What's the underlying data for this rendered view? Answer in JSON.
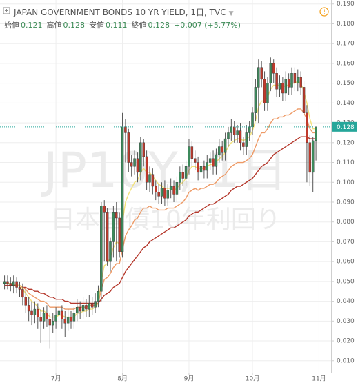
{
  "header": {
    "title": "JAPAN GOVERNMENT BONDS 10 YR YIELD, 1日, TVC",
    "ohlc": [
      {
        "label": "始値",
        "value": 0.121
      },
      {
        "label": "高値",
        "value": 0.128
      },
      {
        "label": "安値",
        "value": 0.111
      },
      {
        "label": "終値",
        "value": 0.128
      }
    ],
    "change": "+0.007 (+5.77%)"
  },
  "chart_data": {
    "type": "candlestick",
    "watermark": "JP10Y, 1日",
    "watermark_sub": "日本国債10年利回り",
    "open": [
      0.049,
      0.05,
      0.049,
      0.048,
      0.05,
      0.047,
      0.046,
      0.042,
      0.038,
      0.035,
      0.033,
      0.036,
      0.032,
      0.03,
      0.034,
      0.031,
      0.028,
      0.03,
      0.033,
      0.035,
      0.031,
      0.029,
      0.032,
      0.03,
      0.034,
      0.037,
      0.035,
      0.038,
      0.036,
      0.039,
      0.037,
      0.04,
      0.045,
      0.088,
      0.085,
      0.06,
      0.07,
      0.085,
      0.082,
      0.065,
      0.128,
      0.125,
      0.11,
      0.108,
      0.112,
      0.105,
      0.12,
      0.113,
      0.1,
      0.104,
      0.098,
      0.095,
      0.093,
      0.097,
      0.092,
      0.096,
      0.098,
      0.094,
      0.1,
      0.105,
      0.102,
      0.108,
      0.118,
      0.112,
      0.11,
      0.105,
      0.108,
      0.106,
      0.11,
      0.112,
      0.108,
      0.114,
      0.118,
      0.115,
      0.122,
      0.125,
      0.128,
      0.124,
      0.126,
      0.12,
      0.118,
      0.125,
      0.128,
      0.135,
      0.148,
      0.158,
      0.152,
      0.14,
      0.15,
      0.16,
      0.155,
      0.147,
      0.15,
      0.145,
      0.152,
      0.148,
      0.155,
      0.15,
      0.153,
      0.148,
      0.135,
      0.12,
      0.105,
      0.121
    ],
    "high": [
      0.053,
      0.053,
      0.052,
      0.053,
      0.052,
      0.05,
      0.049,
      0.046,
      0.042,
      0.04,
      0.04,
      0.039,
      0.036,
      0.037,
      0.038,
      0.034,
      0.034,
      0.037,
      0.039,
      0.038,
      0.035,
      0.036,
      0.035,
      0.037,
      0.041,
      0.04,
      0.042,
      0.041,
      0.043,
      0.042,
      0.044,
      0.048,
      0.09,
      0.091,
      0.087,
      0.072,
      0.088,
      0.09,
      0.085,
      0.135,
      0.132,
      0.127,
      0.114,
      0.116,
      0.115,
      0.123,
      0.122,
      0.116,
      0.108,
      0.107,
      0.101,
      0.099,
      0.1,
      0.101,
      0.099,
      0.102,
      0.101,
      0.103,
      0.108,
      0.109,
      0.111,
      0.122,
      0.121,
      0.116,
      0.113,
      0.112,
      0.111,
      0.114,
      0.115,
      0.116,
      0.117,
      0.122,
      0.121,
      0.125,
      0.128,
      0.132,
      0.131,
      0.129,
      0.13,
      0.123,
      0.129,
      0.131,
      0.138,
      0.152,
      0.162,
      0.161,
      0.156,
      0.153,
      0.163,
      0.162,
      0.158,
      0.154,
      0.153,
      0.156,
      0.155,
      0.158,
      0.158,
      0.157,
      0.156,
      0.151,
      0.139,
      0.124,
      0.123,
      0.128
    ],
    "low": [
      0.046,
      0.046,
      0.045,
      0.044,
      0.044,
      0.042,
      0.038,
      0.034,
      0.03,
      0.028,
      0.029,
      0.026,
      0.019,
      0.026,
      0.027,
      0.016,
      0.024,
      0.026,
      0.029,
      0.026,
      0.022,
      0.025,
      0.026,
      0.026,
      0.03,
      0.031,
      0.031,
      0.032,
      0.032,
      0.033,
      0.034,
      0.037,
      0.04,
      0.06,
      0.058,
      0.055,
      0.062,
      0.06,
      0.062,
      0.062,
      0.11,
      0.105,
      0.103,
      0.104,
      0.1,
      0.101,
      0.108,
      0.096,
      0.095,
      0.094,
      0.091,
      0.089,
      0.089,
      0.088,
      0.088,
      0.092,
      0.09,
      0.09,
      0.096,
      0.098,
      0.098,
      0.104,
      0.108,
      0.106,
      0.101,
      0.1,
      0.102,
      0.102,
      0.106,
      0.104,
      0.104,
      0.11,
      0.111,
      0.111,
      0.118,
      0.121,
      0.12,
      0.12,
      0.116,
      0.114,
      0.114,
      0.121,
      0.124,
      0.131,
      0.13,
      0.148,
      0.136,
      0.136,
      0.146,
      0.15,
      0.143,
      0.143,
      0.141,
      0.141,
      0.144,
      0.144,
      0.146,
      0.146,
      0.144,
      0.13,
      0.1,
      0.098,
      0.095,
      0.111
    ],
    "close": [
      0.05,
      0.049,
      0.048,
      0.05,
      0.047,
      0.046,
      0.042,
      0.038,
      0.035,
      0.033,
      0.036,
      0.032,
      0.03,
      0.034,
      0.031,
      0.028,
      0.03,
      0.033,
      0.035,
      0.031,
      0.029,
      0.032,
      0.03,
      0.034,
      0.037,
      0.035,
      0.038,
      0.036,
      0.039,
      0.037,
      0.04,
      0.045,
      0.088,
      0.085,
      0.06,
      0.07,
      0.085,
      0.082,
      0.065,
      0.128,
      0.125,
      0.11,
      0.108,
      0.112,
      0.105,
      0.12,
      0.113,
      0.1,
      0.104,
      0.098,
      0.095,
      0.093,
      0.097,
      0.092,
      0.096,
      0.098,
      0.094,
      0.1,
      0.105,
      0.102,
      0.108,
      0.118,
      0.112,
      0.11,
      0.105,
      0.108,
      0.106,
      0.11,
      0.112,
      0.108,
      0.114,
      0.118,
      0.115,
      0.122,
      0.125,
      0.128,
      0.124,
      0.126,
      0.12,
      0.118,
      0.125,
      0.128,
      0.135,
      0.148,
      0.158,
      0.152,
      0.14,
      0.15,
      0.16,
      0.155,
      0.147,
      0.15,
      0.145,
      0.152,
      0.148,
      0.155,
      0.15,
      0.153,
      0.148,
      0.135,
      0.12,
      0.105,
      0.121,
      0.128
    ],
    "up_color": "#3d8a5c",
    "down_color": "#c0392b",
    "wick_color": "#555555",
    "overlays": [
      {
        "type": "line",
        "color": "#b5382c",
        "values": [
          0.048,
          0.048,
          0.048,
          0.048,
          0.048,
          0.048,
          0.047,
          0.047,
          0.046,
          0.046,
          0.045,
          0.045,
          0.044,
          0.044,
          0.043,
          0.042,
          0.042,
          0.041,
          0.041,
          0.041,
          0.04,
          0.04,
          0.039,
          0.039,
          0.039,
          0.039,
          0.039,
          0.039,
          0.039,
          0.039,
          0.039,
          0.039,
          0.041,
          0.043,
          0.044,
          0.045,
          0.047,
          0.048,
          0.049,
          0.052,
          0.055,
          0.057,
          0.059,
          0.061,
          0.063,
          0.065,
          0.067,
          0.068,
          0.07,
          0.071,
          0.072,
          0.073,
          0.074,
          0.075,
          0.076,
          0.077,
          0.077,
          0.078,
          0.079,
          0.08,
          0.081,
          0.083,
          0.084,
          0.085,
          0.085,
          0.086,
          0.087,
          0.088,
          0.089,
          0.089,
          0.09,
          0.091,
          0.092,
          0.093,
          0.094,
          0.096,
          0.097,
          0.098,
          0.098,
          0.099,
          0.1,
          0.101,
          0.102,
          0.104,
          0.106,
          0.108,
          0.109,
          0.11,
          0.112,
          0.114,
          0.115,
          0.116,
          0.117,
          0.118,
          0.119,
          0.12,
          0.121,
          0.122,
          0.123,
          0.123,
          0.123,
          0.122,
          0.122,
          0.122
        ]
      },
      {
        "type": "line",
        "color": "#ee9a66",
        "values": [
          0.049,
          0.049,
          0.049,
          0.049,
          0.048,
          0.048,
          0.047,
          0.046,
          0.044,
          0.043,
          0.042,
          0.041,
          0.04,
          0.04,
          0.039,
          0.037,
          0.037,
          0.037,
          0.037,
          0.037,
          0.036,
          0.036,
          0.036,
          0.036,
          0.037,
          0.037,
          0.037,
          0.037,
          0.038,
          0.038,
          0.038,
          0.039,
          0.046,
          0.051,
          0.052,
          0.054,
          0.057,
          0.059,
          0.059,
          0.066,
          0.073,
          0.076,
          0.078,
          0.081,
          0.082,
          0.085,
          0.087,
          0.087,
          0.088,
          0.087,
          0.087,
          0.086,
          0.086,
          0.086,
          0.087,
          0.087,
          0.087,
          0.088,
          0.089,
          0.09,
          0.092,
          0.095,
          0.096,
          0.097,
          0.096,
          0.097,
          0.097,
          0.098,
          0.099,
          0.099,
          0.1,
          0.102,
          0.103,
          0.104,
          0.106,
          0.108,
          0.109,
          0.11,
          0.11,
          0.11,
          0.111,
          0.112,
          0.114,
          0.118,
          0.122,
          0.125,
          0.125,
          0.127,
          0.13,
          0.132,
          0.132,
          0.133,
          0.133,
          0.134,
          0.134,
          0.135,
          0.136,
          0.137,
          0.137,
          0.135,
          0.132,
          0.127,
          0.125,
          0.125
        ]
      },
      {
        "type": "line",
        "color": "#f3e27a",
        "values": [
          0.049,
          0.049,
          0.049,
          0.049,
          0.048,
          0.048,
          0.046,
          0.044,
          0.042,
          0.04,
          0.039,
          0.037,
          0.035,
          0.035,
          0.034,
          0.032,
          0.032,
          0.032,
          0.033,
          0.033,
          0.032,
          0.032,
          0.032,
          0.032,
          0.034,
          0.034,
          0.035,
          0.035,
          0.036,
          0.036,
          0.037,
          0.039,
          0.05,
          0.058,
          0.059,
          0.062,
          0.067,
          0.07,
          0.069,
          0.08,
          0.09,
          0.094,
          0.097,
          0.1,
          0.101,
          0.105,
          0.107,
          0.105,
          0.105,
          0.103,
          0.101,
          0.099,
          0.098,
          0.097,
          0.097,
          0.097,
          0.096,
          0.097,
          0.099,
          0.1,
          0.102,
          0.106,
          0.108,
          0.108,
          0.107,
          0.107,
          0.107,
          0.108,
          0.109,
          0.109,
          0.11,
          0.112,
          0.113,
          0.115,
          0.118,
          0.12,
          0.121,
          0.122,
          0.122,
          0.121,
          0.122,
          0.123,
          0.126,
          0.131,
          0.138,
          0.141,
          0.141,
          0.143,
          0.147,
          0.149,
          0.149,
          0.149,
          0.148,
          0.149,
          0.149,
          0.15,
          0.15,
          0.151,
          0.15,
          0.146,
          0.14,
          0.132,
          0.127,
          0.127
        ]
      }
    ],
    "ylim": [
      0.004,
      0.192
    ],
    "yticks": [
      {
        "value": 0.01,
        "label": "0.010"
      },
      {
        "value": 0.02,
        "label": "0.020"
      },
      {
        "value": 0.03,
        "label": "0.030"
      },
      {
        "value": 0.04,
        "label": "0.040"
      },
      {
        "value": 0.05,
        "label": "0.050"
      },
      {
        "value": 0.06,
        "label": "0.060"
      },
      {
        "value": 0.07,
        "label": "0.070"
      },
      {
        "value": 0.08,
        "label": "0.080"
      },
      {
        "value": 0.09,
        "label": "0.090"
      },
      {
        "value": 0.1,
        "label": "0.100"
      },
      {
        "value": 0.11,
        "label": "0.110"
      },
      {
        "value": 0.12,
        "label": "0.120"
      },
      {
        "value": 0.13,
        "label": "0.130"
      },
      {
        "value": 0.14,
        "label": "0.140"
      },
      {
        "value": 0.15,
        "label": "0.150"
      },
      {
        "value": 0.16,
        "label": "0.160"
      },
      {
        "value": 0.17,
        "label": "0.170"
      },
      {
        "value": 0.18,
        "label": "0.180"
      },
      {
        "value": 0.19,
        "label": "0.190"
      }
    ],
    "xlim": [
      -1.5,
      108
    ],
    "xticks": [
      {
        "value": 17,
        "label": "7月"
      },
      {
        "value": 39,
        "label": "8月"
      },
      {
        "value": 61,
        "label": "9月"
      },
      {
        "value": 82,
        "label": "10月"
      },
      {
        "value": 104,
        "label": "11月"
      }
    ],
    "last_price": 0.128,
    "last_price_color": "#26a69a",
    "grid": true
  }
}
